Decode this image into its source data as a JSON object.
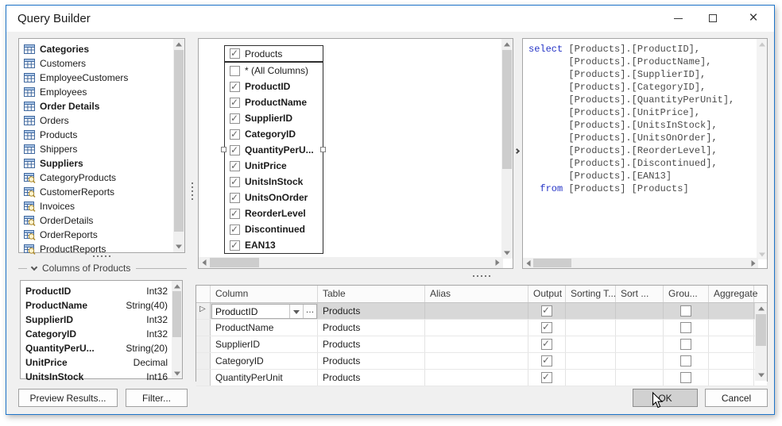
{
  "window": {
    "title": "Query Builder"
  },
  "colors": {
    "accent": "#1d74c9",
    "selection": "#d8d8d8",
    "sql_keyword": "#2433c6"
  },
  "tables_panel": {
    "items": [
      {
        "label": "Categories",
        "bold": true,
        "icon": "table"
      },
      {
        "label": "Customers",
        "bold": false,
        "icon": "table"
      },
      {
        "label": "EmployeeCustomers",
        "bold": false,
        "icon": "table"
      },
      {
        "label": "Employees",
        "bold": false,
        "icon": "table"
      },
      {
        "label": "Order Details",
        "bold": true,
        "icon": "table"
      },
      {
        "label": "Orders",
        "bold": false,
        "icon": "table"
      },
      {
        "label": "Products",
        "bold": false,
        "icon": "table"
      },
      {
        "label": "Shippers",
        "bold": false,
        "icon": "table"
      },
      {
        "label": "Suppliers",
        "bold": true,
        "icon": "table"
      },
      {
        "label": "CategoryProducts",
        "bold": false,
        "icon": "view"
      },
      {
        "label": "CustomerReports",
        "bold": false,
        "icon": "view"
      },
      {
        "label": "Invoices",
        "bold": false,
        "icon": "view"
      },
      {
        "label": "OrderDetails",
        "bold": false,
        "icon": "view"
      },
      {
        "label": "OrderReports",
        "bold": false,
        "icon": "view"
      },
      {
        "label": "ProductReports",
        "bold": false,
        "icon": "view"
      }
    ]
  },
  "columns_panel": {
    "title": "Columns of Products",
    "items": [
      {
        "name": "ProductID",
        "type": "Int32"
      },
      {
        "name": "ProductName",
        "type": "String(40)"
      },
      {
        "name": "SupplierID",
        "type": "Int32"
      },
      {
        "name": "CategoryID",
        "type": "Int32"
      },
      {
        "name": "QuantityPerU...",
        "type": "String(20)"
      },
      {
        "name": "UnitPrice",
        "type": "Decimal"
      },
      {
        "name": "UnitsInStock",
        "type": "Int16"
      }
    ]
  },
  "diagram": {
    "node": {
      "title": "Products",
      "checked": true,
      "columns": [
        {
          "label": "* (All Columns)",
          "checked": false,
          "bold": false
        },
        {
          "label": "ProductID",
          "checked": true,
          "bold": true
        },
        {
          "label": "ProductName",
          "checked": true,
          "bold": true
        },
        {
          "label": "SupplierID",
          "checked": true,
          "bold": true
        },
        {
          "label": "CategoryID",
          "checked": true,
          "bold": true
        },
        {
          "label": "QuantityPerU...",
          "checked": true,
          "bold": true
        },
        {
          "label": "UnitPrice",
          "checked": true,
          "bold": true
        },
        {
          "label": "UnitsInStock",
          "checked": true,
          "bold": true
        },
        {
          "label": "UnitsOnOrder",
          "checked": true,
          "bold": true
        },
        {
          "label": "ReorderLevel",
          "checked": true,
          "bold": true
        },
        {
          "label": "Discontinued",
          "checked": true,
          "bold": true
        },
        {
          "label": "EAN13",
          "checked": true,
          "bold": true
        }
      ]
    }
  },
  "sql": {
    "lines": [
      [
        {
          "t": "select",
          "k": true
        },
        {
          "t": " [Products].[ProductID],"
        }
      ],
      [
        {
          "t": "       [Products].[ProductName],"
        }
      ],
      [
        {
          "t": "       [Products].[SupplierID],"
        }
      ],
      [
        {
          "t": "       [Products].[CategoryID],"
        }
      ],
      [
        {
          "t": "       [Products].[QuantityPerUnit],"
        }
      ],
      [
        {
          "t": "       [Products].[UnitPrice],"
        }
      ],
      [
        {
          "t": "       [Products].[UnitsInStock],"
        }
      ],
      [
        {
          "t": "       [Products].[UnitsOnOrder],"
        }
      ],
      [
        {
          "t": "       [Products].[ReorderLevel],"
        }
      ],
      [
        {
          "t": "       [Products].[Discontinued],"
        }
      ],
      [
        {
          "t": "       [Products].[EAN13]"
        }
      ],
      [
        {
          "t": "  "
        },
        {
          "t": "from",
          "k": true
        },
        {
          "t": " [Products] [Products]"
        }
      ]
    ]
  },
  "grid": {
    "headers": [
      "",
      "Column",
      "Table",
      "Alias",
      "Output",
      "Sorting T...",
      "Sort ...",
      "Grou...",
      "Aggregate"
    ],
    "rows": [
      {
        "column": "ProductID",
        "table": "Products",
        "alias": "",
        "output": true,
        "sorting": "",
        "sort": "",
        "group": false,
        "aggregate": "",
        "selected": true
      },
      {
        "column": "ProductName",
        "table": "Products",
        "alias": "",
        "output": true,
        "sorting": "",
        "sort": "",
        "group": false,
        "aggregate": "",
        "selected": false
      },
      {
        "column": "SupplierID",
        "table": "Products",
        "alias": "",
        "output": true,
        "sorting": "",
        "sort": "",
        "group": false,
        "aggregate": "",
        "selected": false
      },
      {
        "column": "CategoryID",
        "table": "Products",
        "alias": "",
        "output": true,
        "sorting": "",
        "sort": "",
        "group": false,
        "aggregate": "",
        "selected": false
      },
      {
        "column": "QuantityPerUnit",
        "table": "Products",
        "alias": "",
        "output": true,
        "sorting": "",
        "sort": "",
        "group": false,
        "aggregate": "",
        "selected": false
      }
    ]
  },
  "footer": {
    "preview_label": "Preview Results...",
    "filter_label": "Filter...",
    "ok_label": "OK",
    "cancel_label": "Cancel"
  }
}
